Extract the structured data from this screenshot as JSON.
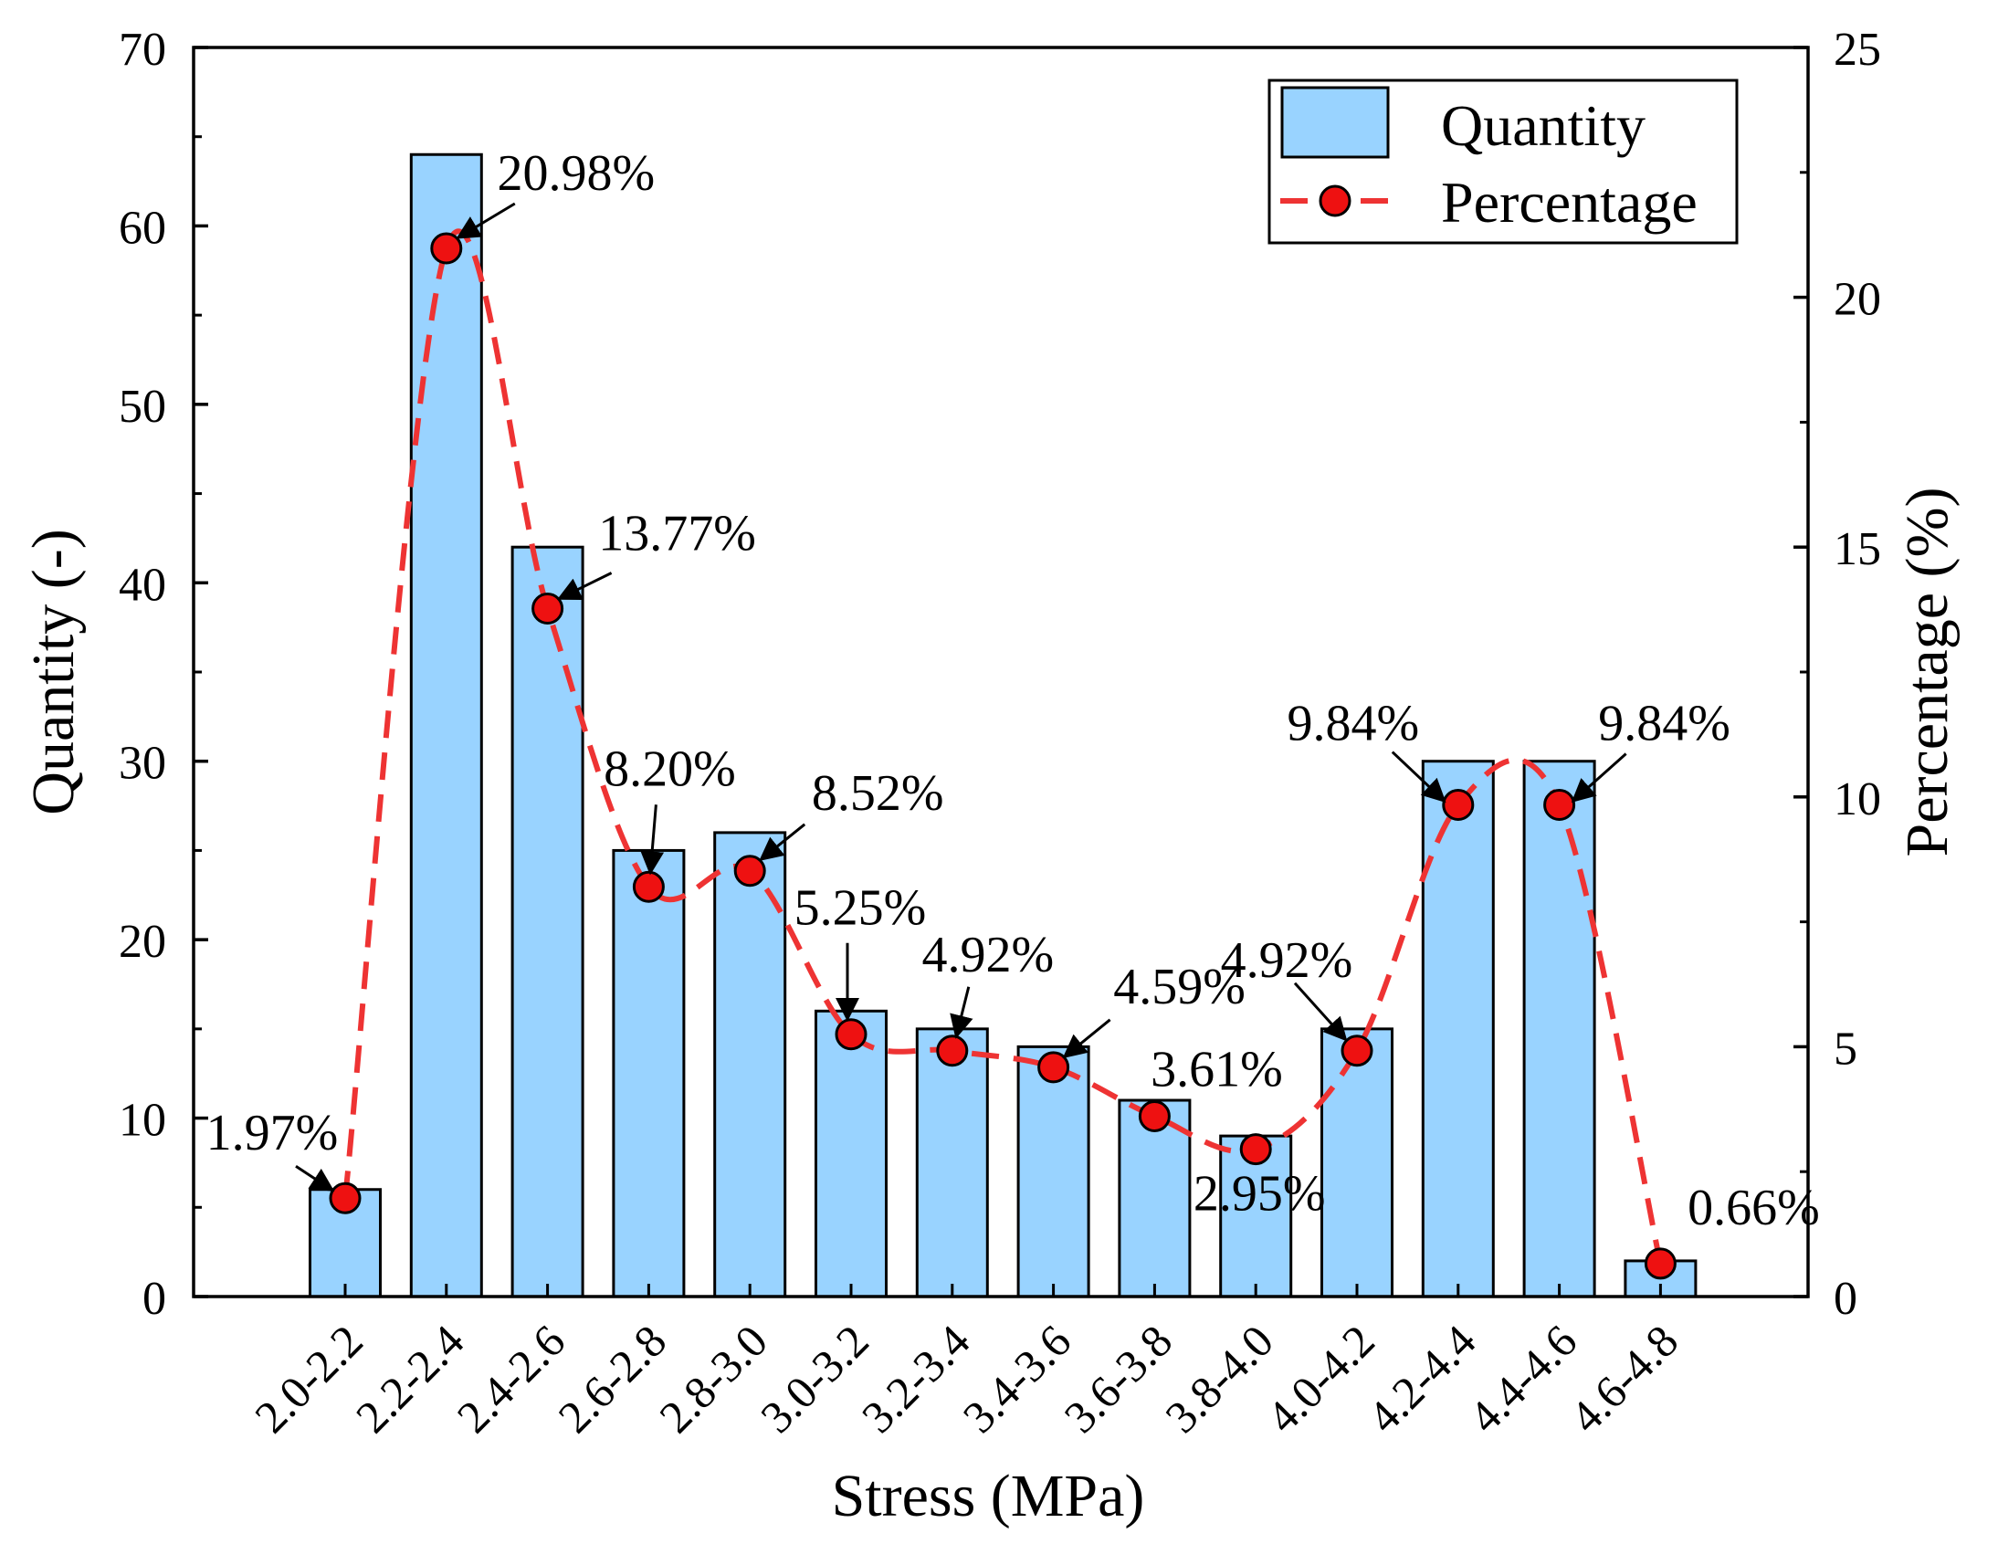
{
  "chart_data": {
    "type": "bar+line",
    "xlabel": "Stress (MPa)",
    "ylabel_left": "Quantity (-)",
    "ylabel_right": "Percentage (%)",
    "ylim_left": [
      0,
      70
    ],
    "ylim_right": [
      0,
      25
    ],
    "yticks_left": [
      0,
      10,
      20,
      30,
      40,
      50,
      60,
      70
    ],
    "yticks_right": [
      0,
      5,
      10,
      15,
      20,
      25
    ],
    "categories": [
      "2.0-2.2",
      "2.2-2.4",
      "2.4-2.6",
      "2.6-2.8",
      "2.8-3.0",
      "3.0-3.2",
      "3.2-3.4",
      "3.4-3.6",
      "3.6-3.8",
      "3.8-4.0",
      "4.0-4.2",
      "4.2-4.4",
      "4.4-4.6",
      "4.6-4.8"
    ],
    "series": [
      {
        "name": "Quantity",
        "type": "bar",
        "axis": "left",
        "color": "#99d3ff",
        "values": [
          6,
          64,
          42,
          25,
          26,
          16,
          15,
          14,
          11,
          9,
          15,
          30,
          30,
          2
        ]
      },
      {
        "name": "Percentage",
        "type": "line",
        "axis": "right",
        "color": "#ee3333",
        "values": [
          1.97,
          20.98,
          13.77,
          8.2,
          8.52,
          5.25,
          4.92,
          4.59,
          3.61,
          2.95,
          4.92,
          9.84,
          9.84,
          0.66
        ],
        "labels": [
          "1.97%",
          "20.98%",
          "13.77%",
          "8.20%",
          "8.52%",
          "5.25%",
          "4.92%",
          "4.59%",
          "3.61%",
          "2.95%",
          "4.92%",
          "9.84%",
          "9.84%",
          "0.66%"
        ]
      }
    ],
    "legend": {
      "position": "top-right",
      "items": [
        "Quantity",
        "Percentage"
      ]
    }
  }
}
